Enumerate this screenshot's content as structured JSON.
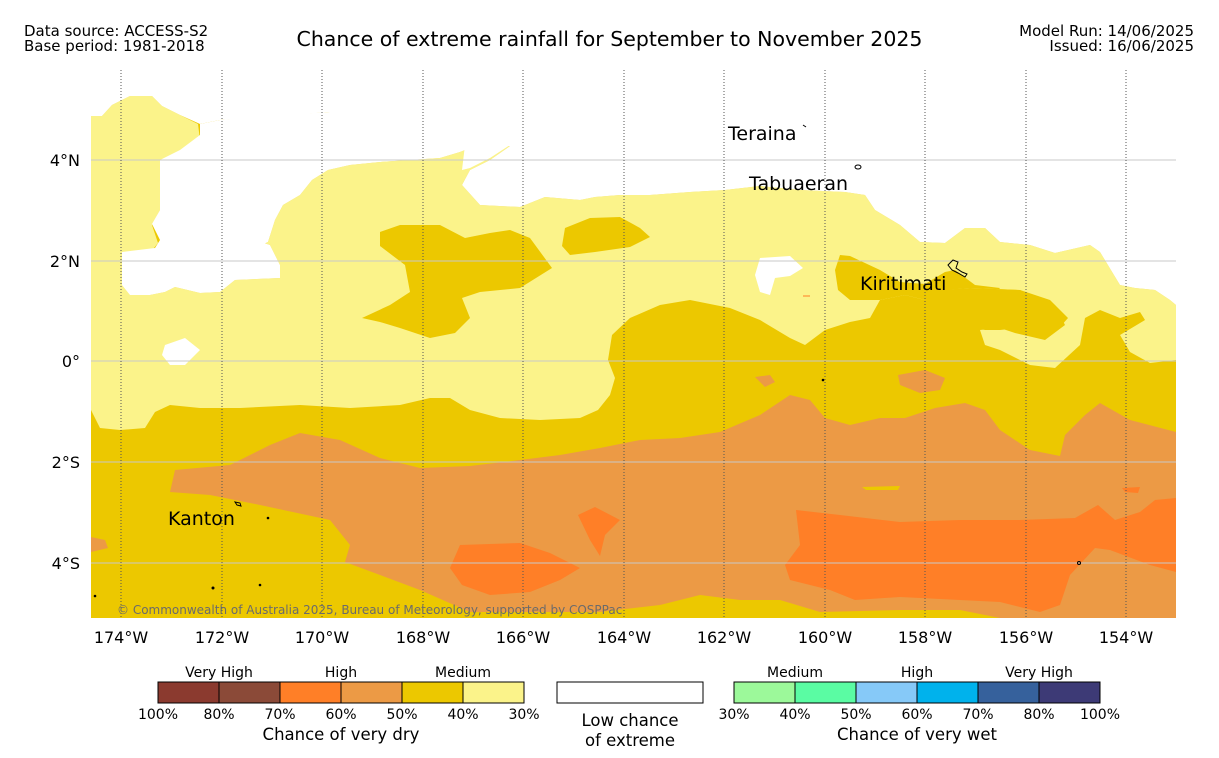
{
  "header": {
    "left_line1": "Data source: ACCESS-S2",
    "left_line2": "Base period: 1981-2018",
    "title": "Chance of extreme rainfall for September to November 2025",
    "right_line1": "Model Run: 14/06/2025",
    "right_line2": "Issued: 16/06/2025"
  },
  "map": {
    "lat_labels": [
      "4°N",
      "2°N",
      "0°",
      "2°S",
      "4°S"
    ],
    "lon_labels": [
      "174°W",
      "172°W",
      "170°W",
      "168°W",
      "166°W",
      "164°W",
      "162°W",
      "160°W",
      "158°W",
      "156°W",
      "154°W"
    ],
    "places": [
      "Teraina",
      "Tabuaeran",
      "Kiritimati",
      "Kanton"
    ],
    "credit": "© Commonwealth of Australia 2025, Bureau of Meteorology, supported by COSPPac",
    "colors": {
      "very_dry_100_80": "#8b3a2f",
      "very_dry_80_70": "#8b4a38",
      "high_70_60": "#ff7f27",
      "high_60_50": "#ec9a45",
      "medium_50_40": "#ecc800",
      "medium_40_30": "#fbf38a",
      "low": "#ffffff",
      "wet_30_40": "#9cf99a",
      "wet_40_50": "#5afca3",
      "wet_50_60": "#86c9f8",
      "wet_60_70": "#00b2ec",
      "wet_70_80": "#36619c",
      "wet_80_100": "#3d3a76"
    }
  },
  "legend": {
    "dry": {
      "headings": [
        "Very High",
        "High",
        "Medium"
      ],
      "ticks": [
        "100%",
        "80%",
        "70%",
        "60%",
        "50%",
        "40%",
        "30%"
      ],
      "caption": "Chance of very dry"
    },
    "low": {
      "caption_line1": "Low chance",
      "caption_line2": "of extreme"
    },
    "wet": {
      "headings": [
        "Medium",
        "High",
        "Very High"
      ],
      "ticks": [
        "30%",
        "40%",
        "50%",
        "60%",
        "70%",
        "80%",
        "100%"
      ],
      "caption": "Chance of very wet"
    }
  }
}
